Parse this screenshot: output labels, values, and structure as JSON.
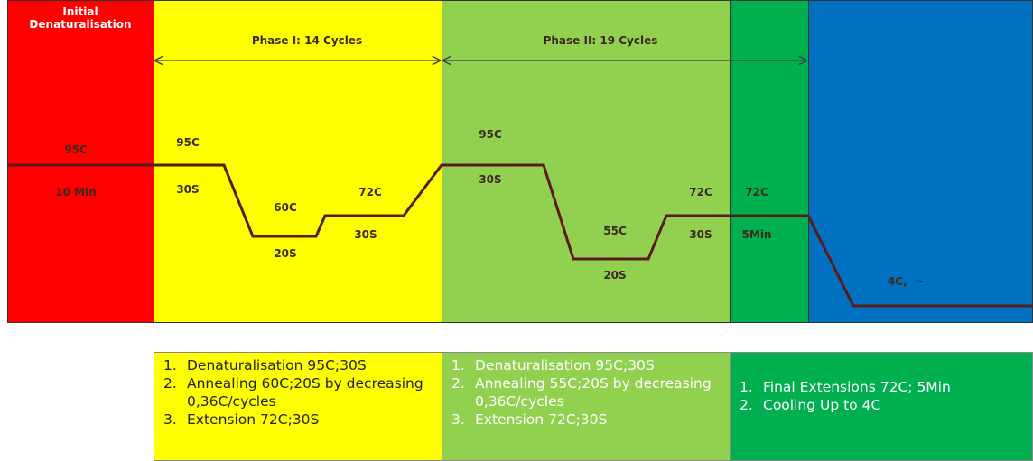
{
  "stages": [
    {
      "title": "Initial Denaturalisation",
      "labels": [
        "95C",
        "10 Min"
      ]
    },
    {
      "title": "Phase I: 14 Cycles",
      "labels": [
        "95C",
        "30S",
        "60C",
        "20S",
        "72C",
        "30S"
      ]
    },
    {
      "title": "Phase II: 19 Cycles",
      "labels": [
        "95C",
        "30S",
        "55C",
        "20S",
        "72C",
        "30S"
      ]
    },
    {
      "labels": [
        "72C",
        "5Min"
      ]
    },
    {
      "labels": [
        "4C,  ~"
      ]
    }
  ],
  "legend": [
    {
      "items": [
        {
          "num": "1.",
          "text": "Denaturalisation 95C;30S"
        },
        {
          "num": "2.",
          "text": "Annealing 60C;20S by decreasing 0,36C/cycles"
        },
        {
          "num": "3.",
          "text": "Extension 72C;30S"
        }
      ]
    },
    {
      "items": [
        {
          "num": "1.",
          "text": "Denaturalisation 95C;30S"
        },
        {
          "num": "2.",
          "text": "Annealing 55C;20S by decreasing 0,36C/cycles"
        },
        {
          "num": "3.",
          "text": "Extension 72C;30S"
        }
      ]
    },
    {
      "items": [
        {
          "num": "1.",
          "text": "Final Extensions 72C; 5Min"
        },
        {
          "num": "2.",
          "text": "Cooling Up to 4C"
        }
      ]
    }
  ]
}
